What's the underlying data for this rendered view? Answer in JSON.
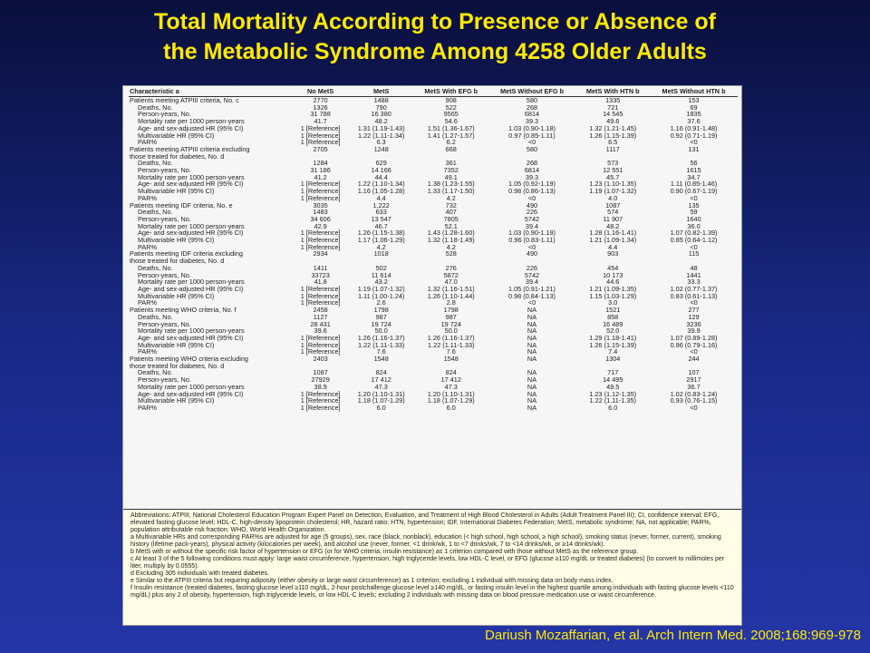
{
  "title": {
    "line1": "Total Mortality According to Presence or Absence of",
    "line2": "the Metabolic Syndrome Among 4258 Older Adults"
  },
  "table": {
    "headers": [
      "Characteristic a",
      "No MetS",
      "MetS",
      "MetS With EFG b",
      "MetS Without EFG b",
      "MetS With HTN b",
      "MetS Without HTN b"
    ],
    "rows": [
      {
        "label": "Patients meeting ATPIII criteria, No. c",
        "type": "section",
        "cells": [
          "2770",
          "1488",
          "908",
          "580",
          "1335",
          "153"
        ]
      },
      {
        "label": "Deaths, No.",
        "cells": [
          "1326",
          "790",
          "522",
          "268",
          "721",
          "69"
        ]
      },
      {
        "label": "Person-years, No.",
        "cells": [
          "31 788",
          "16 380",
          "9565",
          "6814",
          "14 545",
          "1835"
        ]
      },
      {
        "label": "Mortality rate per 1000 person-years",
        "cells": [
          "41.7",
          "48.2",
          "54.6",
          "39.3",
          "49.6",
          "37.6"
        ]
      },
      {
        "label": "Age- and sex-adjusted HR (95% CI)",
        "cells": [
          "1 [Reference]",
          "1.31 (1.19-1.43)",
          "1.51 (1.36-1.67)",
          "1.03 (0.90-1.18)",
          "1.32 (1.21-1.45)",
          "1.16 (0.91-1.48)"
        ]
      },
      {
        "label": "Multivariable HR (95% CI)",
        "cells": [
          "1 [Reference]",
          "1.22 (1.11-1.34)",
          "1.41 (1.27-1.57)",
          "0.97 (0.85-1.11)",
          "1.26 (1.15-1.39)",
          "0.92 (0.71-1.19)"
        ]
      },
      {
        "label": "PAR%",
        "cells": [
          "1 [Reference]",
          "6.3",
          "6.2",
          "<0",
          "6.5",
          "<0"
        ]
      },
      {
        "label": "Patients meeting ATPIII criteria excluding",
        "type": "section",
        "cells": [
          "2705",
          "1248",
          "668",
          "580",
          "1117",
          "131"
        ]
      },
      {
        "label": "those treated for diabetes, No. d",
        "type": "section",
        "cells": [
          "",
          "",
          "",
          "",
          "",
          ""
        ]
      },
      {
        "label": "Deaths, No.",
        "cells": [
          "1284",
          "629",
          "361",
          "268",
          "573",
          "56"
        ]
      },
      {
        "label": "Person-years, No.",
        "cells": [
          "31 186",
          "14 166",
          "7352",
          "6814",
          "12 551",
          "1615"
        ]
      },
      {
        "label": "Mortality rate per 1000 person-years",
        "cells": [
          "41.2",
          "44.4",
          "49.1",
          "39.3",
          "45.7",
          "34.7"
        ]
      },
      {
        "label": "Age- and sex-adjusted HR (95% CI)",
        "cells": [
          "1 [Reference]",
          "1.22 (1.10-1.34)",
          "1.38 (1.23-1.55)",
          "1.05 (0.92-1.19)",
          "1.23 (1.10-1.35)",
          "1.11 (0.85-1.46)"
        ]
      },
      {
        "label": "Multivariable HR (95% CI)",
        "cells": [
          "1 [Reference]",
          "1.16 (1.05-1.28)",
          "1.33 (1.17-1.50)",
          "0.98 (0.86-1.13)",
          "1.19 (1.07-1.32)",
          "0.90 (0.67-1.19)"
        ]
      },
      {
        "label": "PAR%",
        "cells": [
          "1 [Reference]",
          "4.4",
          "4.2",
          "<0",
          "4.0",
          "<0"
        ]
      },
      {
        "label": "Patients meeting IDF criteria, No. e",
        "type": "section",
        "cells": [
          "3035",
          "1,222",
          "732",
          "490",
          "1087",
          "135"
        ]
      },
      {
        "label": "Deaths, No.",
        "cells": [
          "1483",
          "633",
          "407",
          "226",
          "574",
          "59"
        ]
      },
      {
        "label": "Person-years, No.",
        "cells": [
          "34 606",
          "13 547",
          "7805",
          "5742",
          "11 907",
          "1640"
        ]
      },
      {
        "label": "Mortality rate per 1000 person-years",
        "cells": [
          "42.9",
          "46.7",
          "52.1",
          "39.4",
          "48.2",
          "36.0"
        ]
      },
      {
        "label": "Age- and sex-adjusted HR (95% CI)",
        "cells": [
          "1 [Reference]",
          "1.26 (1.15-1.38)",
          "1.43 (1.28-1.60)",
          "1.03 (0.90-1.19)",
          "1.28 (1.16-1.41)",
          "1.07 (0.82-1.39)"
        ]
      },
      {
        "label": "Multivariable HR (95% CI)",
        "cells": [
          "1 [Reference]",
          "1.17 (1.06-1.29)",
          "1.32 (1.18-1.49)",
          "0.96 (0.83-1.11)",
          "1.21 (1.09-1.34)",
          "0.85 (0.64-1.12)"
        ]
      },
      {
        "label": "PAR%",
        "cells": [
          "1 [Reference]",
          "4.2",
          "4.2",
          "<0",
          "4.4",
          "<0"
        ]
      },
      {
        "label": "Patients meeting IDF criteria excluding",
        "type": "section",
        "cells": [
          "2934",
          "1018",
          "528",
          "490",
          "903",
          "115"
        ]
      },
      {
        "label": "those treated for diabetes, No. d",
        "type": "section",
        "cells": [
          "",
          "",
          "",
          "",
          "",
          ""
        ]
      },
      {
        "label": "Deaths, No.",
        "cells": [
          "1411",
          "502",
          "276",
          "226",
          "454",
          "48"
        ]
      },
      {
        "label": "Person-years, No.",
        "cells": [
          "33723",
          "11 614",
          "5872",
          "5742",
          "10 173",
          "1441"
        ]
      },
      {
        "label": "Mortality rate per 1000 person-years",
        "cells": [
          "41.8",
          "43.2",
          "47.0",
          "39.4",
          "44.6",
          "33.3"
        ]
      },
      {
        "label": "Age- and sex-adjusted HR (95% CI)",
        "cells": [
          "1 [Reference]",
          "1.19 (1.07-1.32)",
          "1.32 (1.16-1.51)",
          "1.05 (0.91-1.21)",
          "1.21 (1.09-1.35)",
          "1.02 (0.77-1.37)"
        ]
      },
      {
        "label": "Multivariable HR (95% CI)",
        "cells": [
          "1 [Reference]",
          "1.11 (1.00-1.24)",
          "1.26 (1.10-1.44)",
          "0.98 (0.84-1.13)",
          "1.15 (1.03-1.29)",
          "0.83 (0.61-1.13)"
        ]
      },
      {
        "label": "PAR%",
        "cells": [
          "1 [Reference]",
          "2.6",
          "2.8",
          "<0",
          "3.0",
          "<0"
        ]
      },
      {
        "label": "Patients meeting WHO criteria, No. f",
        "type": "section",
        "cells": [
          "2458",
          "1798",
          "1798",
          "NA",
          "1521",
          "277"
        ]
      },
      {
        "label": "Deaths, No.",
        "cells": [
          "1127",
          "987",
          "987",
          "NA",
          "858",
          "129"
        ]
      },
      {
        "label": "Person-years, No.",
        "cells": [
          "28 431",
          "19 724",
          "19 724",
          "NA",
          "16 489",
          "3236"
        ]
      },
      {
        "label": "Mortality rate per 1000 person-years",
        "cells": [
          "39.6",
          "50.0",
          "50.0",
          "NA",
          "52.0",
          "39.9"
        ]
      },
      {
        "label": "Age- and sex-adjusted HR (95% CI)",
        "cells": [
          "1 [Reference]",
          "1.26 (1.16-1.37)",
          "1.26 (1.16-1.37)",
          "NA",
          "1.29 (1.18-1.41)",
          "1.07 (0.89-1.28)"
        ]
      },
      {
        "label": "Multivariable HR (95% CI)",
        "cells": [
          "1 [Reference]",
          "1.22 (1.11-1.33)",
          "1.22 (1.11-1.33)",
          "NA",
          "1.26 (1.15-1.39)",
          "0.96 (0.79-1.16)"
        ]
      },
      {
        "label": "PAR%",
        "cells": [
          "1 [Reference]",
          "7.6",
          "7.6",
          "NA",
          "7.4",
          "<0"
        ]
      },
      {
        "label": "Patients meeting WHO criteria excluding",
        "type": "section",
        "cells": [
          "2403",
          "1548",
          "1548",
          "NA",
          "1304",
          "244"
        ]
      },
      {
        "label": "those treated for diabetes, No. d",
        "type": "section",
        "cells": [
          "",
          "",
          "",
          "",
          "",
          ""
        ]
      },
      {
        "label": "Deaths, No.",
        "cells": [
          "1087",
          "824",
          "824",
          "NA",
          "717",
          "107"
        ]
      },
      {
        "label": "Person-years, No.",
        "cells": [
          "27929",
          "17 412",
          "17 412",
          "NA",
          "14 495",
          "2917"
        ]
      },
      {
        "label": "Mortality rate per 1000 person-years",
        "cells": [
          "38.9",
          "47.3",
          "47.3",
          "NA",
          "49.5",
          "36.7"
        ]
      },
      {
        "label": "Age- and sex-adjusted HR (95% CI)",
        "cells": [
          "1 [Reference]",
          "1.20 (1.10-1.31)",
          "1.20 (1.10-1.31)",
          "NA",
          "1.23 (1.12-1.35)",
          "1.02 (0.83-1.24)"
        ]
      },
      {
        "label": "Multivariable HR (95% CI)",
        "cells": [
          "1 [Reference]",
          "1.18 (1.07-1.29)",
          "1.18 (1.07-1.29)",
          "NA",
          "1.22 (1.11-1.35)",
          "0.93 (0.76-1.15)"
        ]
      },
      {
        "label": "PAR%",
        "cells": [
          "1 [Reference]",
          "6.0",
          "6.0",
          "NA",
          "6.0",
          "<0"
        ]
      }
    ]
  },
  "footnotes": [
    "Abbreviations: ATPIII, National Cholesterol Education Program Expert Panel on Detection, Evaluation, and Treatment of High Blood Cholesterol in Adults (Adult Treatment Panel III); CI, confidence interval; EFG, elevated fasting glucose level; HDL-C, high-density lipoprotein cholesterol; HR, hazard ratio; HTN, hypertension; IDF, International Diabetes Federation; MetS, metabolic syndrome; NA, not applicable; PAR%, population attributable risk fraction; WHO, World Health Organization.",
    "a Multivariable HRs and corresponding PAR%s are adjusted for age (5 groups), sex, race (black, nonblack), education (< high school, high school, ≥ high school), smoking status (never, former, current), smoking history (lifetime pack-years), physical activity (kilocalories per week), and alcohol use (never, former, <1 drink/wk, 1 to <7 drinks/wk, 7 to <14 drinks/wk, or ≥14 drinks/wk).",
    "b MetS with or without the specific risk factor of hypertension or EFG (or for WHO criteria, insulin resistance) as 1 criterion compared with those without MetS as the reference group.",
    "c At least 3 of the 5 following conditions must apply: large waist circumference, hypertension, high triglyceride levels, low HDL-C level, or EFG (glucose ≥110 mg/dL or treated diabetes) (to convert to millimoles per liter, multiply by 0.0555).",
    "d Excluding 305 individuals with treated diabetes.",
    "e Similar to the ATPIII criteria but requiring adiposity (either obesity or large waist circumference) as 1 criterion; excluding 1 individual with missing data on body mass index.",
    "f Insulin resistance (treated diabetes, fasting glucose level ≥110 mg/dL, 2-hour postchallenge glucose level ≥140 mg/dL, or fasting insulin level in the highest quartile among individuals with fasting glucose levels <110 mg/dL) plus any 2 of obesity, hypertension, high triglyceride levels, or low HDL-C levels; excluding 2 individuals with missing data on blood pressure medication use or waist circumference."
  ],
  "citation": "Dariush Mozaffarian, et al. Arch Intern Med. 2008;168:969-978"
}
